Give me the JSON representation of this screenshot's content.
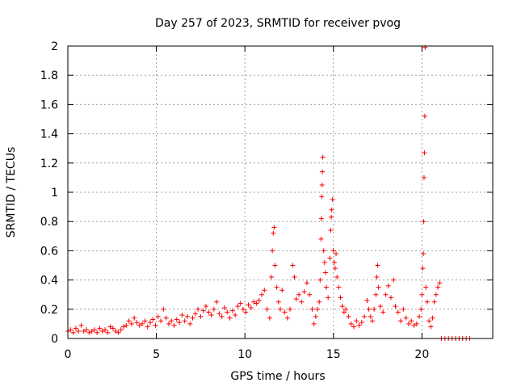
{
  "chart_data": {
    "type": "scatter",
    "title": "Day 257 of 2023, SRMTID for receiver pvog",
    "xlabel": "GPS time / hours",
    "ylabel": "SRMTID / TECUs",
    "xlim": [
      0,
      24
    ],
    "ylim": [
      0,
      2
    ],
    "xticks": [
      0,
      5,
      10,
      15,
      20
    ],
    "xtick_labels": [
      "0",
      "5",
      "10",
      "15",
      "20"
    ],
    "yticks": [
      0,
      0.2,
      0.4,
      0.6,
      0.8,
      1,
      1.2,
      1.4,
      1.6,
      1.8,
      2
    ],
    "ytick_labels": [
      "0",
      "0.2",
      "0.4",
      "0.6",
      "0.8",
      "1",
      "1.2",
      "1.4",
      "1.6",
      "1.8",
      "2"
    ],
    "grid": true,
    "marker": "+",
    "color": "#ff0000",
    "series": [
      {
        "name": "SRMTID",
        "points": [
          [
            0.0,
            0.05
          ],
          [
            0.15,
            0.06
          ],
          [
            0.3,
            0.04
          ],
          [
            0.45,
            0.07
          ],
          [
            0.6,
            0.05
          ],
          [
            0.75,
            0.09
          ],
          [
            0.9,
            0.05
          ],
          [
            1.05,
            0.06
          ],
          [
            1.2,
            0.04
          ],
          [
            1.35,
            0.05
          ],
          [
            1.5,
            0.06
          ],
          [
            1.65,
            0.04
          ],
          [
            1.8,
            0.07
          ],
          [
            1.95,
            0.05
          ],
          [
            2.1,
            0.06
          ],
          [
            2.25,
            0.04
          ],
          [
            2.4,
            0.08
          ],
          [
            2.55,
            0.07
          ],
          [
            2.7,
            0.05
          ],
          [
            2.85,
            0.04
          ],
          [
            3.0,
            0.06
          ],
          [
            3.15,
            0.08
          ],
          [
            3.3,
            0.09
          ],
          [
            3.45,
            0.12
          ],
          [
            3.6,
            0.1
          ],
          [
            3.75,
            0.14
          ],
          [
            3.9,
            0.11
          ],
          [
            4.05,
            0.09
          ],
          [
            4.2,
            0.1
          ],
          [
            4.35,
            0.12
          ],
          [
            4.5,
            0.08
          ],
          [
            4.65,
            0.11
          ],
          [
            4.8,
            0.13
          ],
          [
            4.95,
            0.09
          ],
          [
            5.1,
            0.15
          ],
          [
            5.25,
            0.12
          ],
          [
            5.4,
            0.2
          ],
          [
            5.55,
            0.14
          ],
          [
            5.7,
            0.1
          ],
          [
            5.85,
            0.12
          ],
          [
            6.0,
            0.09
          ],
          [
            6.15,
            0.13
          ],
          [
            6.3,
            0.11
          ],
          [
            6.45,
            0.16
          ],
          [
            6.6,
            0.12
          ],
          [
            6.75,
            0.15
          ],
          [
            6.9,
            0.1
          ],
          [
            7.05,
            0.14
          ],
          [
            7.2,
            0.17
          ],
          [
            7.35,
            0.2
          ],
          [
            7.5,
            0.15
          ],
          [
            7.65,
            0.19
          ],
          [
            7.8,
            0.22
          ],
          [
            7.95,
            0.18
          ],
          [
            8.1,
            0.16
          ],
          [
            8.25,
            0.2
          ],
          [
            8.4,
            0.25
          ],
          [
            8.55,
            0.17
          ],
          [
            8.7,
            0.15
          ],
          [
            8.85,
            0.21
          ],
          [
            9.0,
            0.18
          ],
          [
            9.15,
            0.14
          ],
          [
            9.3,
            0.19
          ],
          [
            9.45,
            0.16
          ],
          [
            9.6,
            0.22
          ],
          [
            9.75,
            0.24
          ],
          [
            9.9,
            0.2
          ],
          [
            10.05,
            0.18
          ],
          [
            10.2,
            0.23
          ],
          [
            10.35,
            0.21
          ],
          [
            10.5,
            0.25
          ],
          [
            10.65,
            0.24
          ],
          [
            10.8,
            0.26
          ],
          [
            10.95,
            0.3
          ],
          [
            11.1,
            0.33
          ],
          [
            11.25,
            0.2
          ],
          [
            11.4,
            0.14
          ],
          [
            11.5,
            0.42
          ],
          [
            11.55,
            0.6
          ],
          [
            11.6,
            0.72
          ],
          [
            11.65,
            0.76
          ],
          [
            11.7,
            0.5
          ],
          [
            11.8,
            0.35
          ],
          [
            11.9,
            0.25
          ],
          [
            12.0,
            0.2
          ],
          [
            12.1,
            0.33
          ],
          [
            12.25,
            0.18
          ],
          [
            12.4,
            0.14
          ],
          [
            12.55,
            0.2
          ],
          [
            12.7,
            0.5
          ],
          [
            12.8,
            0.42
          ],
          [
            12.9,
            0.27
          ],
          [
            13.05,
            0.3
          ],
          [
            13.2,
            0.25
          ],
          [
            13.35,
            0.32
          ],
          [
            13.5,
            0.38
          ],
          [
            13.65,
            0.3
          ],
          [
            13.8,
            0.2
          ],
          [
            13.9,
            0.1
          ],
          [
            14.0,
            0.15
          ],
          [
            14.1,
            0.2
          ],
          [
            14.2,
            0.25
          ],
          [
            14.25,
            0.4
          ],
          [
            14.3,
            0.68
          ],
          [
            14.32,
            0.82
          ],
          [
            14.34,
            0.97
          ],
          [
            14.36,
            1.05
          ],
          [
            14.38,
            1.14
          ],
          [
            14.4,
            1.24
          ],
          [
            14.45,
            0.6
          ],
          [
            14.5,
            0.52
          ],
          [
            14.55,
            0.45
          ],
          [
            14.6,
            0.35
          ],
          [
            14.7,
            0.28
          ],
          [
            14.8,
            0.55
          ],
          [
            14.85,
            0.74
          ],
          [
            14.88,
            0.83
          ],
          [
            14.9,
            0.88
          ],
          [
            14.95,
            0.95
          ],
          [
            15.0,
            0.6
          ],
          [
            15.05,
            0.52
          ],
          [
            15.1,
            0.48
          ],
          [
            15.15,
            0.58
          ],
          [
            15.2,
            0.42
          ],
          [
            15.3,
            0.35
          ],
          [
            15.4,
            0.28
          ],
          [
            15.5,
            0.22
          ],
          [
            15.6,
            0.18
          ],
          [
            15.7,
            0.2
          ],
          [
            15.85,
            0.15
          ],
          [
            16.0,
            0.1
          ],
          [
            16.15,
            0.08
          ],
          [
            16.3,
            0.12
          ],
          [
            16.45,
            0.09
          ],
          [
            16.6,
            0.11
          ],
          [
            16.75,
            0.15
          ],
          [
            16.9,
            0.26
          ],
          [
            17.0,
            0.2
          ],
          [
            17.1,
            0.15
          ],
          [
            17.2,
            0.12
          ],
          [
            17.3,
            0.2
          ],
          [
            17.4,
            0.3
          ],
          [
            17.45,
            0.42
          ],
          [
            17.5,
            0.5
          ],
          [
            17.55,
            0.35
          ],
          [
            17.65,
            0.22
          ],
          [
            17.8,
            0.18
          ],
          [
            17.95,
            0.3
          ],
          [
            18.1,
            0.36
          ],
          [
            18.25,
            0.28
          ],
          [
            18.4,
            0.4
          ],
          [
            18.5,
            0.22
          ],
          [
            18.65,
            0.18
          ],
          [
            18.8,
            0.12
          ],
          [
            18.95,
            0.2
          ],
          [
            19.1,
            0.14
          ],
          [
            19.25,
            0.1
          ],
          [
            19.4,
            0.12
          ],
          [
            19.55,
            0.09
          ],
          [
            19.7,
            0.1
          ],
          [
            19.85,
            0.15
          ],
          [
            19.95,
            0.2
          ],
          [
            20.0,
            0.3
          ],
          [
            20.05,
            0.48
          ],
          [
            20.08,
            0.58
          ],
          [
            20.1,
            0.8
          ],
          [
            20.12,
            1.1
          ],
          [
            20.14,
            1.27
          ],
          [
            20.16,
            1.52
          ],
          [
            20.18,
            1.99
          ],
          [
            20.22,
            0.35
          ],
          [
            20.3,
            0.25
          ],
          [
            20.4,
            0.12
          ],
          [
            20.5,
            0.08
          ],
          [
            20.6,
            0.14
          ],
          [
            20.7,
            0.25
          ],
          [
            20.8,
            0.3
          ],
          [
            20.9,
            0.35
          ],
          [
            21.0,
            0.38
          ],
          [
            21.1,
            0.0
          ],
          [
            21.3,
            0.0
          ],
          [
            21.5,
            0.0
          ],
          [
            21.7,
            0.0
          ],
          [
            21.9,
            0.0
          ],
          [
            22.1,
            0.0
          ],
          [
            22.3,
            0.0
          ],
          [
            22.5,
            0.0
          ],
          [
            22.7,
            0.0
          ]
        ]
      }
    ]
  }
}
